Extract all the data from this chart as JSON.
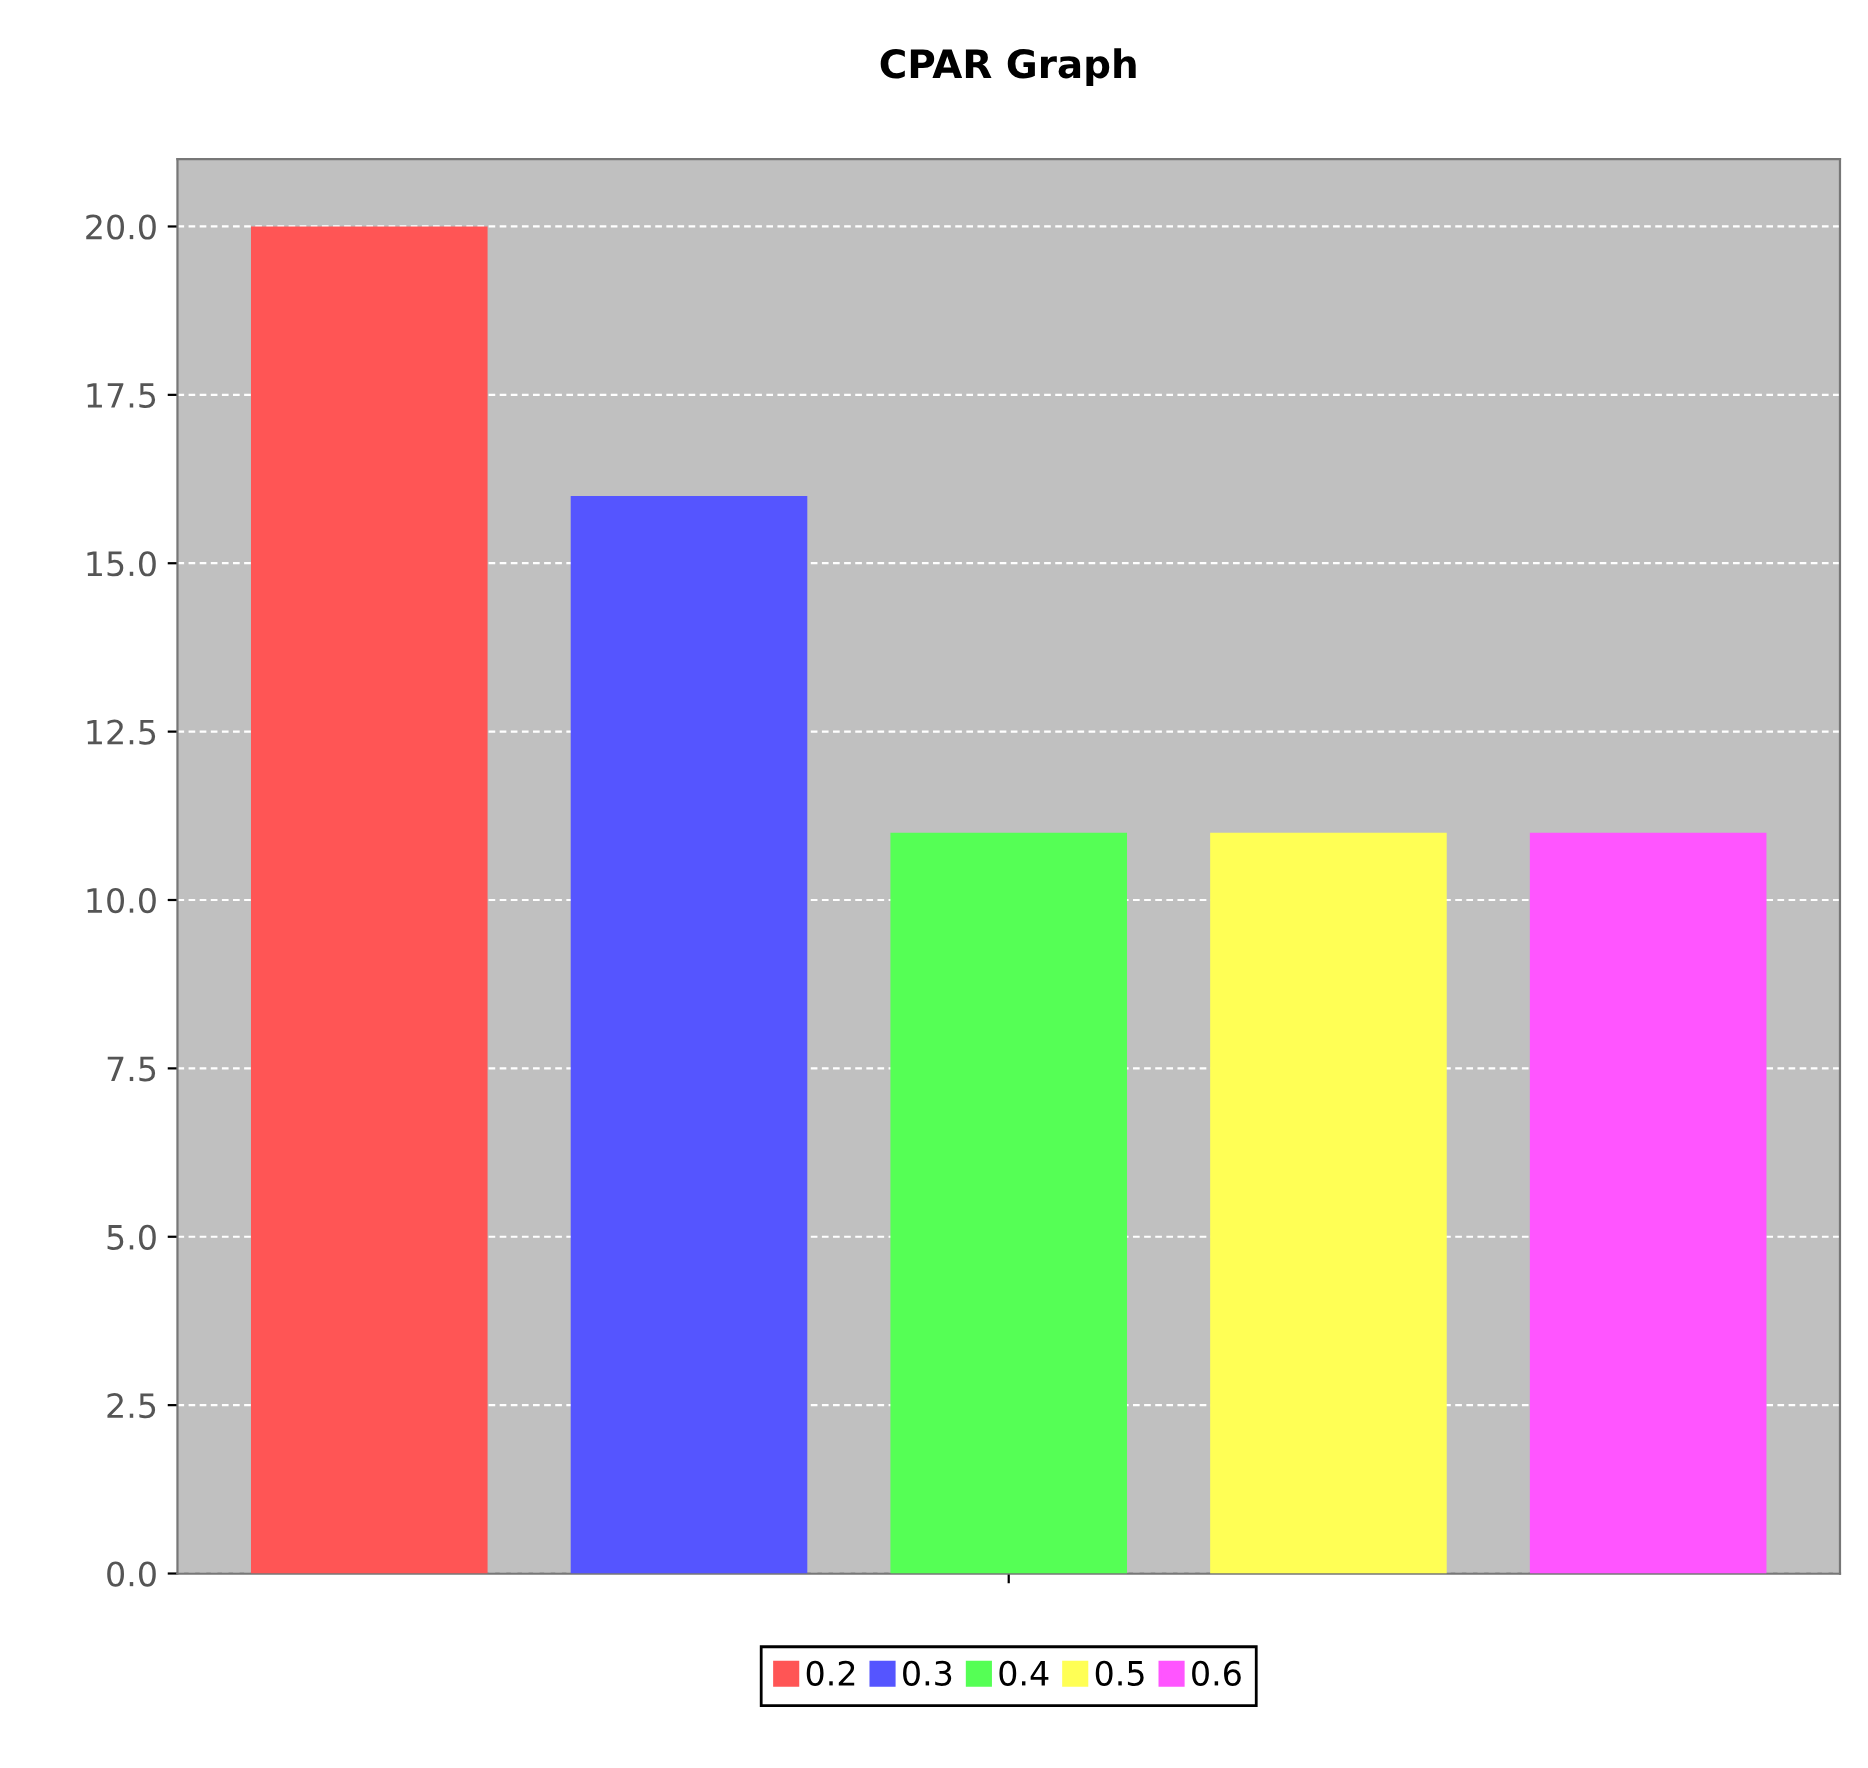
{
  "chart_data": {
    "type": "bar",
    "title": "CPAR Graph",
    "categories": [
      null
    ],
    "series": [
      {
        "name": "0.2",
        "color": "#ff5555",
        "values": [
          20.0
        ]
      },
      {
        "name": "0.3",
        "color": "#5555ff",
        "values": [
          16.0
        ]
      },
      {
        "name": "0.4",
        "color": "#55ff55",
        "values": [
          11.0
        ]
      },
      {
        "name": "0.5",
        "color": "#ffff55",
        "values": [
          11.0
        ]
      },
      {
        "name": "0.6",
        "color": "#ff55ff",
        "values": [
          11.0
        ]
      }
    ],
    "ylim": [
      0,
      21
    ],
    "yticks": [
      {
        "value": 0,
        "label": "0.0"
      },
      {
        "value": 2.5,
        "label": "2.5"
      },
      {
        "value": 5,
        "label": "5.0"
      },
      {
        "value": 7.5,
        "label": "7.5"
      },
      {
        "value": 10,
        "label": "10.0"
      },
      {
        "value": 12.5,
        "label": "12.5"
      },
      {
        "value": 15,
        "label": "15.0"
      },
      {
        "value": 17.5,
        "label": "17.5"
      },
      {
        "value": 20,
        "label": "20.0"
      }
    ],
    "grid": "y",
    "legend": "bottom"
  }
}
